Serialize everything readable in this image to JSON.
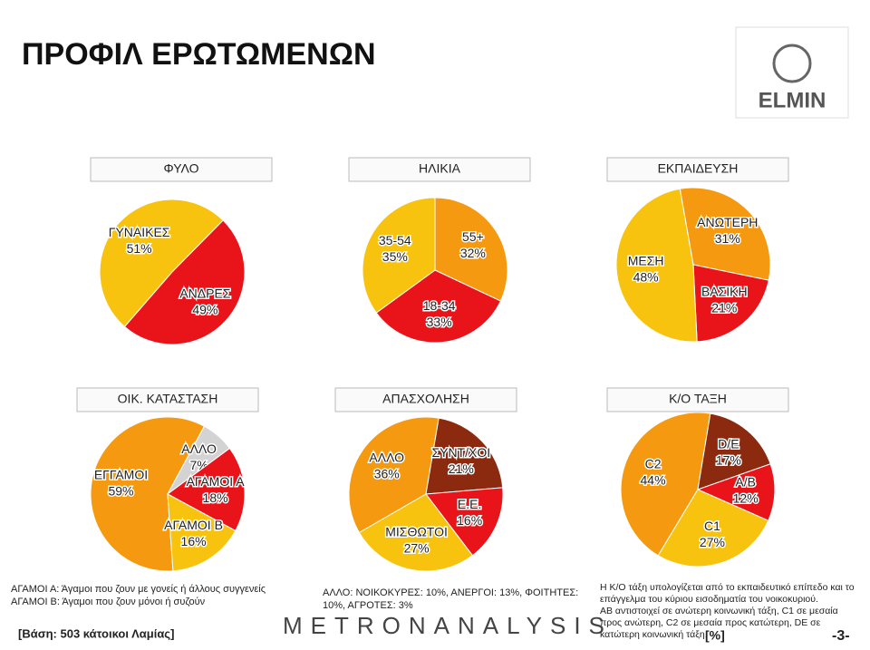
{
  "title": "ΠΡΟΦΙΛ ΕΡΩΤΩΜΕΝΩΝ",
  "logo": "ELMIN",
  "chart_data": [
    {
      "type": "pie",
      "title": "ΦΥΛΟ",
      "categories": [
        "ΓΥΝΑΙΚΕΣ",
        "ΑΝΔΡΕΣ"
      ],
      "values": [
        51,
        49
      ],
      "value_labels": [
        "51%",
        "49%"
      ],
      "colors": [
        "#f7c30f",
        "#e8141a"
      ]
    },
    {
      "type": "pie",
      "title": "ΗΛΙΚΙΑ",
      "categories": [
        "55+",
        "18-34",
        "35-54"
      ],
      "values": [
        32,
        33,
        35
      ],
      "value_labels": [
        "32%",
        "33%",
        "35%"
      ],
      "colors": [
        "#f59a10",
        "#e8141a",
        "#f7c30f"
      ]
    },
    {
      "type": "pie",
      "title": "ΕΚΠΑΙΔΕΥΣΗ",
      "categories": [
        "ΑΝΩΤΕΡΗ",
        "ΒΑΣΙΚΗ",
        "ΜΕΣΗ"
      ],
      "values": [
        31,
        21,
        48
      ],
      "value_labels": [
        "31%",
        "21%",
        "48%"
      ],
      "colors": [
        "#f59a10",
        "#e8141a",
        "#f7c30f"
      ]
    },
    {
      "type": "pie",
      "title": "ΟΙΚ. ΚΑΤΑΣΤΑΣΗ",
      "categories": [
        "ΕΓΓΑΜΟΙ",
        "ΑΛΛΟ",
        "ΑΓΑΜΟΙ Α",
        "ΑΓΑΜΟΙ Β"
      ],
      "values": [
        59,
        7,
        18,
        16
      ],
      "value_labels": [
        "59%",
        "7%",
        "18%",
        "16%"
      ],
      "colors": [
        "#f59a10",
        "#d3d3d3",
        "#e8141a",
        "#f7c30f"
      ]
    },
    {
      "type": "pie",
      "title": "ΑΠΑΣΧΟΛΗΣΗ",
      "categories": [
        "ΑΛΛΟ",
        "ΣΥΝΤ/ΧΟΙ",
        "Ε.Ε.",
        "ΜΙΣΘΩΤΟΙ"
      ],
      "values": [
        36,
        21,
        16,
        27
      ],
      "value_labels": [
        "36%",
        "21%",
        "16%",
        "27%"
      ],
      "colors": [
        "#f59a10",
        "#8b2a0e",
        "#e8141a",
        "#f7c30f"
      ]
    },
    {
      "type": "pie",
      "title": "Κ/Ο ΤΑΞΗ",
      "categories": [
        "C2",
        "D/E",
        "A/B",
        "C1"
      ],
      "values": [
        44,
        17,
        12,
        27
      ],
      "value_labels": [
        "44%",
        "17%",
        "12%",
        "27%"
      ],
      "colors": [
        "#f59a10",
        "#8b2a0e",
        "#e8141a",
        "#f7c30f"
      ]
    }
  ],
  "notes": {
    "left": [
      "ΑΓΑΜΟΙ Α: Άγαμοι που ζουν με γονείς ή άλλους συγγενείς",
      "ΑΓΑΜΟΙ Β: Άγαμοι που ζουν μόνοι ή συζούν"
    ],
    "base": "[Βάση: 503 κάτοικοι Λαμίας]",
    "middle": [
      "ΑΛΛΟ: ΝΟΙΚΟΚΥΡΕΣ: 10%, ΑΝΕΡΓΟΙ: 13%, ΦΟΙΤΗΤΕΣ:",
      "10%, ΑΓΡΟΤΕΣ: 3%"
    ],
    "brand": "METRONANALYSIS",
    "right": [
      "Η Κ/Ο τάξη υπολογίζεται από το εκπαιδευτικό επίπεδο και το",
      "επάγγελμα του κύριου εισοδηματία του νοικοκυριού.",
      "ΑΒ αντιστοιχεί σε ανώτερη κοινωνική τάξη, C1 σε μεσαία",
      "προς ανώτερη, C2 σε μεσαία προς κατώτερη, DE σε",
      "κατώτερη κοινωνική τάξη."
    ],
    "unit": "[%]",
    "page": "-3-"
  }
}
